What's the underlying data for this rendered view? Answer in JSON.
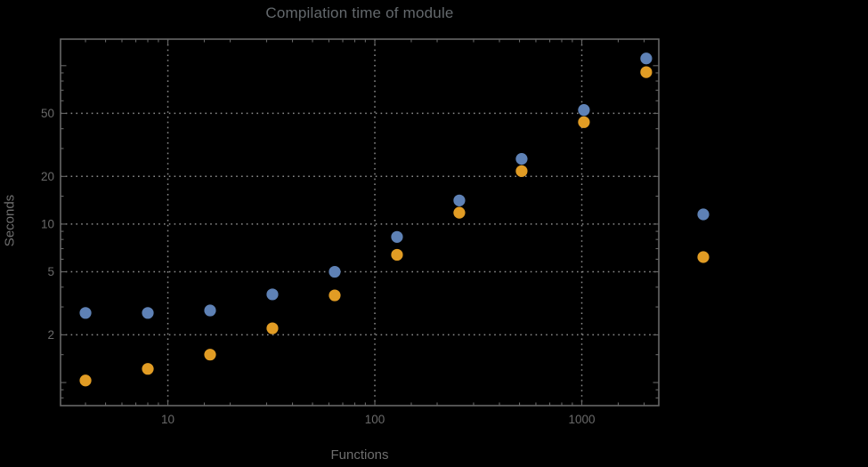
{
  "chart_data": {
    "type": "scatter",
    "title": "Compilation time of module",
    "xlabel": "Functions",
    "ylabel": "Seconds",
    "x_scale": "log",
    "y_scale": "log",
    "grid": "dotted",
    "x": [
      4,
      8,
      16,
      32,
      64,
      128,
      256,
      512,
      1024,
      2048
    ],
    "series": [
      {
        "name": "blue-series",
        "color": "#5E81B5",
        "values": [
          2.75,
          2.75,
          2.85,
          3.6,
          5.0,
          8.3,
          14.1,
          25.8,
          52.5,
          111
        ]
      },
      {
        "name": "orange-series",
        "color": "#E19C24",
        "values": [
          1.03,
          1.22,
          1.5,
          2.2,
          3.55,
          6.4,
          11.8,
          21.6,
          44,
          91
        ]
      }
    ],
    "axes": {
      "x": {
        "range": [
          3.03,
          2355
        ],
        "ticks_labeled": [
          10,
          100,
          1000
        ],
        "tick_labels": [
          "10",
          "100",
          "1000"
        ],
        "ticks_minor": [
          4,
          5,
          6,
          7,
          8,
          9,
          15,
          20,
          30,
          40,
          50,
          60,
          70,
          80,
          90,
          150,
          200,
          300,
          400,
          500,
          600,
          700,
          800,
          900,
          1500,
          2000
        ],
        "gridlines": [
          10,
          100,
          1000
        ]
      },
      "y": {
        "range": [
          0.715,
          147
        ],
        "ticks_labeled": [
          2,
          5,
          10,
          20,
          50
        ],
        "tick_labels": [
          "2",
          "5",
          "10",
          "20",
          "50"
        ],
        "ticks_unlabeled_major": [
          1,
          100
        ],
        "ticks_minor": [
          0.8,
          0.9,
          1.5,
          3,
          4,
          6,
          7,
          8,
          9,
          15,
          30,
          40,
          60,
          70,
          80,
          90
        ],
        "gridlines": [
          2,
          5,
          10,
          20,
          50
        ]
      }
    },
    "legend": {
      "position": "outside-right",
      "items": [
        {
          "label": "",
          "color": "#5E81B5"
        },
        {
          "label": "",
          "color": "#E19C24"
        }
      ]
    },
    "colors": {
      "background": "#000000",
      "frame": "#666666",
      "grid": "#8a8a8a",
      "tick_text": "#696969",
      "title_text": "#64696d",
      "axis_label_text": "#6e6e6e"
    }
  }
}
